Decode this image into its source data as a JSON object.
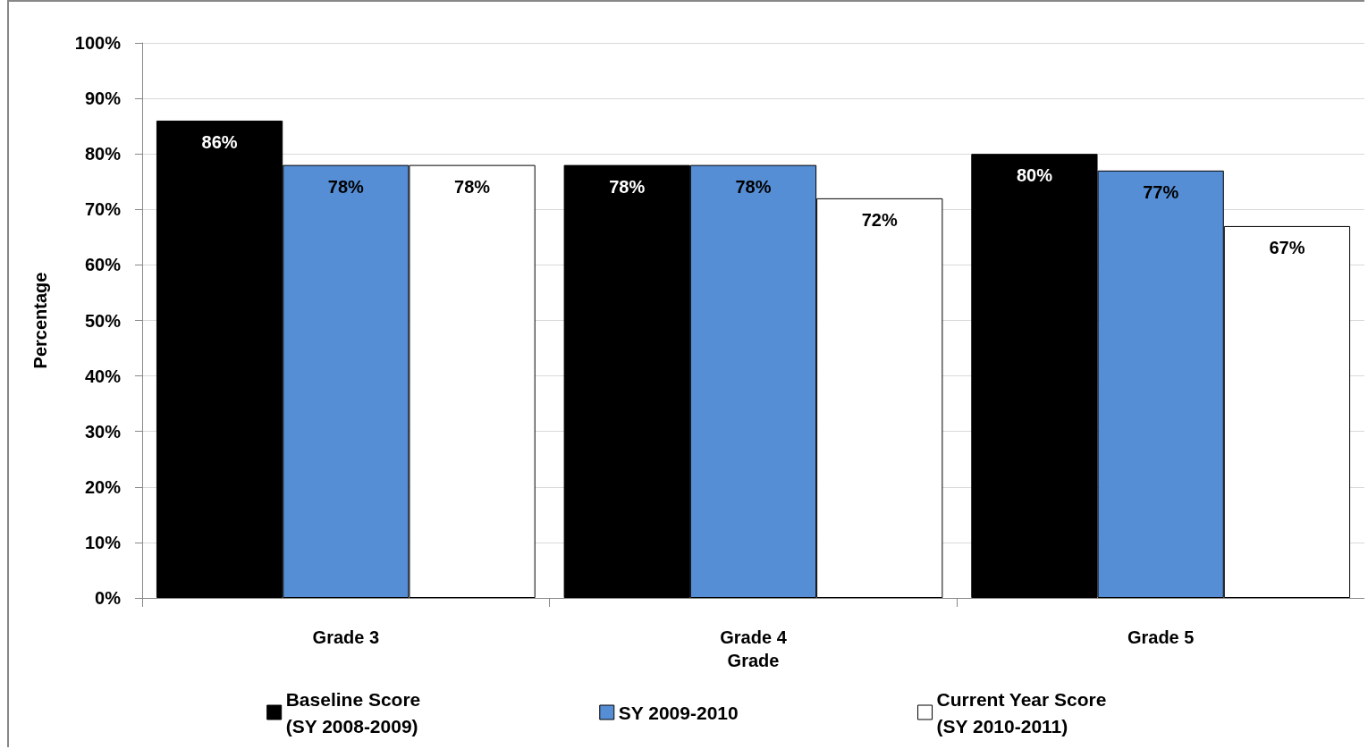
{
  "chart_data": {
    "type": "bar",
    "xlabel": "Grade",
    "ylabel": "Percentage",
    "categories": [
      "Grade 3",
      "Grade 4",
      "Grade 5"
    ],
    "series": [
      {
        "name": "Baseline Score\n(SY 2008-2009)",
        "color": "#000000",
        "values": [
          86,
          78,
          80
        ]
      },
      {
        "name": "SY 2009-2010",
        "color": "#558ed5",
        "values": [
          78,
          78,
          77
        ]
      },
      {
        "name": "Current Year Score\n(SY 2010-2011)",
        "color": "#ffffff",
        "values": [
          78,
          72,
          67
        ]
      }
    ],
    "ylim": [
      0,
      100
    ],
    "yticks": [
      {
        "value": 0,
        "label": "0%"
      },
      {
        "value": 10,
        "label": "10%"
      },
      {
        "value": 20,
        "label": "20%"
      },
      {
        "value": 30,
        "label": "30%"
      },
      {
        "value": 40,
        "label": "40%"
      },
      {
        "value": 50,
        "label": "50%"
      },
      {
        "value": 60,
        "label": "60%"
      },
      {
        "value": 70,
        "label": "70%"
      },
      {
        "value": 80,
        "label": "80%"
      },
      {
        "value": 90,
        "label": "90%"
      },
      {
        "value": 100,
        "label": "100%"
      }
    ],
    "value_labels": [
      [
        "86%",
        "78%",
        "80%"
      ],
      [
        "78%",
        "78%",
        "77%"
      ],
      [
        "78%",
        "72%",
        "67%"
      ]
    ],
    "grid": "y",
    "legend": "bottom"
  }
}
